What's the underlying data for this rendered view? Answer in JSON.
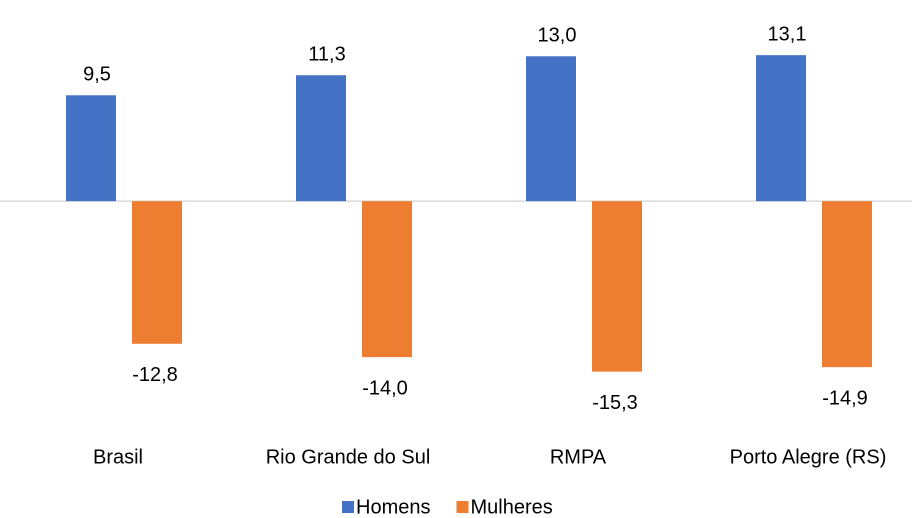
{
  "chart_data": {
    "type": "bar",
    "categories": [
      "Brasil",
      "Rio Grande do Sul",
      "RMPA",
      "Porto Alegre (RS)"
    ],
    "series": [
      {
        "name": "Homens",
        "color": "#4472c4",
        "label_color": "#000000",
        "values": [
          9.5,
          11.3,
          13.0,
          13.1
        ],
        "value_labels": [
          "9,5",
          "11,3",
          "13,0",
          "13,1"
        ]
      },
      {
        "name": "Mulheres",
        "color": "#ed7d31",
        "label_color": "#ff0000",
        "values": [
          -12.8,
          -14.0,
          -15.3,
          -14.9
        ],
        "value_labels": [
          "-12,8",
          "-14,0",
          "-15,3",
          "-14,9"
        ]
      }
    ],
    "ylim": [
      -20,
      15
    ],
    "grid": false,
    "legend": "bottom"
  }
}
